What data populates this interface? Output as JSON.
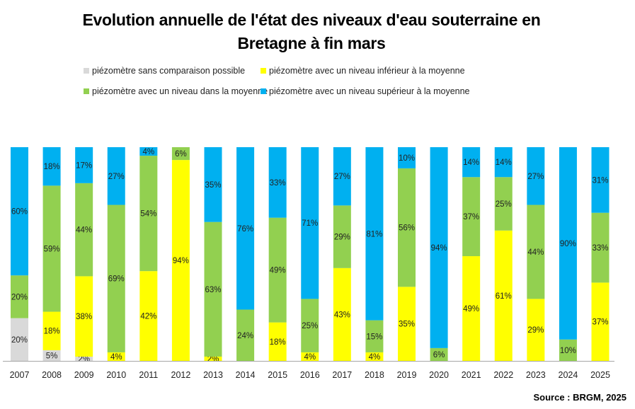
{
  "chart_data": {
    "type": "bar",
    "stacked": true,
    "normalized": true,
    "title": "Evolution annuelle de l'état des niveaux d'eau souterraine en Bretagne à fin mars",
    "title_lines": [
      "Evolution annuelle de l'état des niveaux d'eau souterraine en",
      "Bretagne à fin mars"
    ],
    "xlabel": "",
    "ylabel": "",
    "ylim": [
      0,
      100
    ],
    "grid": false,
    "legend_position": "top",
    "categories": [
      "2007",
      "2008",
      "2009",
      "2010",
      "2011",
      "2012",
      "2013",
      "2014",
      "2015",
      "2016",
      "2017",
      "2018",
      "2019",
      "2020",
      "2021",
      "2022",
      "2023",
      "2024",
      "2025"
    ],
    "series": [
      {
        "name": "piézomètre sans comparaison possible",
        "color": "#d9d9d9",
        "values": [
          20,
          5,
          2,
          0,
          0,
          0,
          0,
          0,
          0,
          0,
          0,
          0,
          0,
          0,
          0,
          0,
          0,
          0,
          0
        ]
      },
      {
        "name": "piézomètre avec un niveau inférieur à la moyenne",
        "color": "#ffff00",
        "values": [
          0,
          18,
          38,
          4,
          42,
          94,
          2,
          0,
          18,
          4,
          43,
          4,
          35,
          0,
          49,
          61,
          29,
          0,
          37
        ]
      },
      {
        "name": "piézomètre avec un niveau dans la moyenne",
        "color": "#92d050",
        "values": [
          20,
          59,
          44,
          69,
          54,
          6,
          63,
          24,
          49,
          25,
          29,
          15,
          56,
          6,
          37,
          25,
          44,
          10,
          33
        ]
      },
      {
        "name": "piézomètre avec un niveau supérieur à la moyenne",
        "color": "#00b0f0",
        "values": [
          60,
          18,
          17,
          27,
          4,
          0,
          35,
          76,
          33,
          71,
          27,
          81,
          10,
          94,
          14,
          14,
          27,
          90,
          31
        ]
      }
    ],
    "value_suffix": "%",
    "source": "Source : BRGM, 2025"
  }
}
